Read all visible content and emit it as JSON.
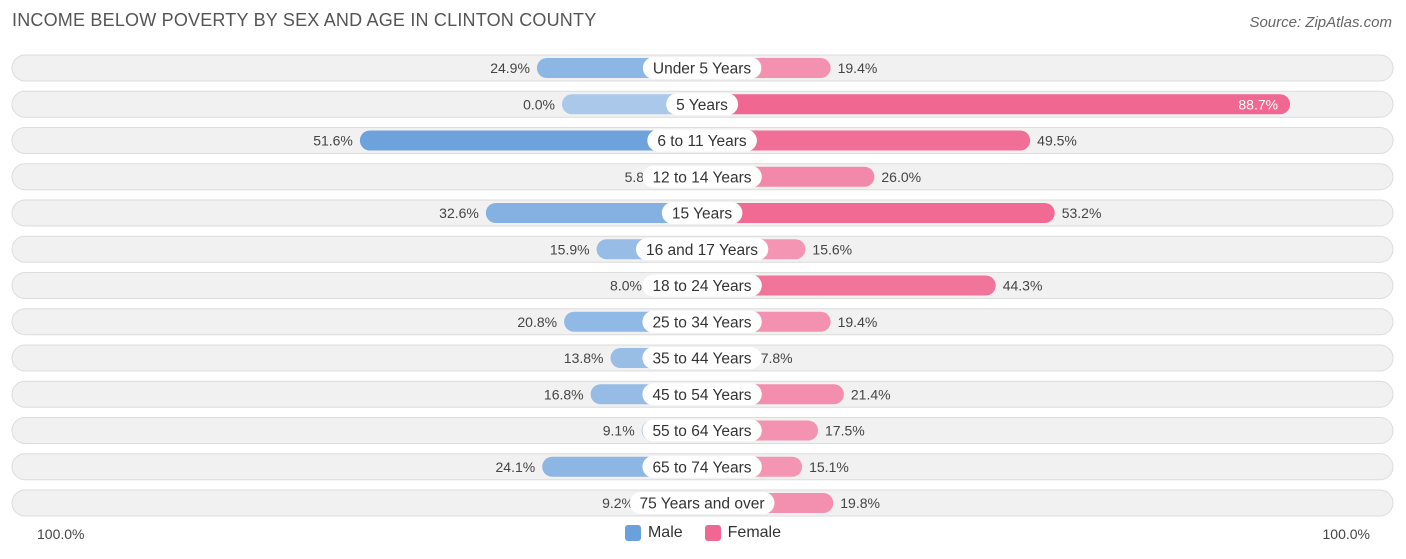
{
  "title": "INCOME BELOW POVERTY BY SEX AND AGE IN CLINTON COUNTY",
  "source": "Source: ZipAtlas.com",
  "colors": {
    "male": "#6aa0dc",
    "male_light": "#a9c8ea",
    "female": "#f06892",
    "female_light": "#f6a7c0"
  },
  "legend": {
    "male_label": "Male",
    "female_label": "Female"
  },
  "axis": {
    "left_label": "100.0%",
    "right_label": "100.0%"
  },
  "chart_data": {
    "type": "bar",
    "orientation": "horizontal-diverging",
    "title": "INCOME BELOW POVERTY BY SEX AND AGE IN CLINTON COUNTY",
    "xlim": [
      -100,
      100
    ],
    "categories": [
      "Under 5 Years",
      "5 Years",
      "6 to 11 Years",
      "12 to 14 Years",
      "15 Years",
      "16 and 17 Years",
      "18 to 24 Years",
      "25 to 34 Years",
      "35 to 44 Years",
      "45 to 54 Years",
      "55 to 64 Years",
      "65 to 74 Years",
      "75 Years and over"
    ],
    "series": [
      {
        "name": "Male",
        "values": [
          24.9,
          0.0,
          51.6,
          5.8,
          32.6,
          15.9,
          8.0,
          20.8,
          13.8,
          16.8,
          9.1,
          24.1,
          9.2
        ],
        "labels": [
          "24.9%",
          "0.0%",
          "51.6%",
          "5.8%",
          "32.6%",
          "15.9%",
          "8.0%",
          "20.8%",
          "13.8%",
          "16.8%",
          "9.1%",
          "24.1%",
          "9.2%"
        ]
      },
      {
        "name": "Female",
        "values": [
          19.4,
          88.7,
          49.5,
          26.0,
          53.2,
          15.6,
          44.3,
          19.4,
          7.8,
          21.4,
          17.5,
          15.1,
          19.8
        ],
        "labels": [
          "19.4%",
          "88.7%",
          "49.5%",
          "26.0%",
          "53.2%",
          "15.6%",
          "44.3%",
          "19.4%",
          "7.8%",
          "21.4%",
          "17.5%",
          "15.1%",
          "19.8%"
        ]
      }
    ],
    "legend_position": "bottom-center"
  }
}
